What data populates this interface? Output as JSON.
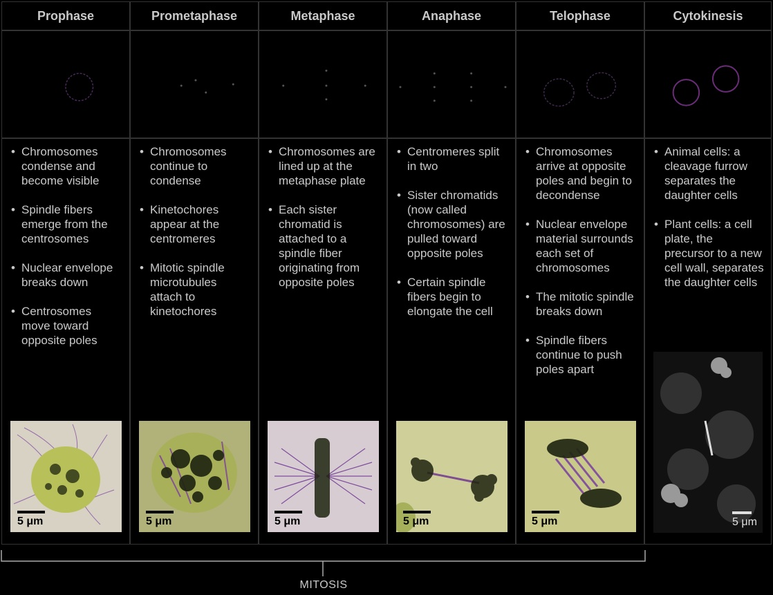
{
  "phases": [
    {
      "name": "Prophase",
      "points": [
        "Chromosomes condense and become visible",
        "Spindle fibers emerge from the centrosomes",
        "Nuclear envelope breaks down",
        "Centrosomes move toward opposite poles"
      ],
      "scale": "5 μm"
    },
    {
      "name": "Prometaphase",
      "points": [
        "Chromosomes continue to condense",
        "Kinetochores appear at the centromeres",
        "Mitotic spindle microtubules attach to kinetochores"
      ],
      "scale": "5 μm"
    },
    {
      "name": "Metaphase",
      "points": [
        "Chromosomes are lined up at the metaphase plate",
        "Each sister chromatid is attached to a spindle fiber originating from opposite poles"
      ],
      "scale": "5 μm"
    },
    {
      "name": "Anaphase",
      "points": [
        "Centromeres split in two",
        "Sister chromatids (now called chromosomes) are pulled toward opposite poles",
        "Certain spindle fibers begin to elongate the cell"
      ],
      "scale": "5 μm"
    },
    {
      "name": "Telophase",
      "points": [
        "Chromosomes arrive at opposite poles and begin to decondense",
        "Nuclear envelope material surrounds each set of chromosomes",
        "The mitotic spindle breaks down",
        "Spindle fibers continue to push poles apart"
      ],
      "scale": "5 μm"
    },
    {
      "name": "Cytokinesis",
      "points": [
        "Animal cells: a cleavage furrow separates the daughter cells",
        "Plant cells: a cell plate, the precursor to a new cell wall, separates the daughter cells"
      ],
      "scale": "5 μm"
    }
  ],
  "bracket_label": "MITOSIS",
  "colors": {
    "background": "#000000",
    "text": "#c9c9c9",
    "cell_bg": "#d9d9c0",
    "chromatin": "#1e2410",
    "spindle": "#7a3fa0",
    "cytoplasm": "#b7bf5a"
  }
}
